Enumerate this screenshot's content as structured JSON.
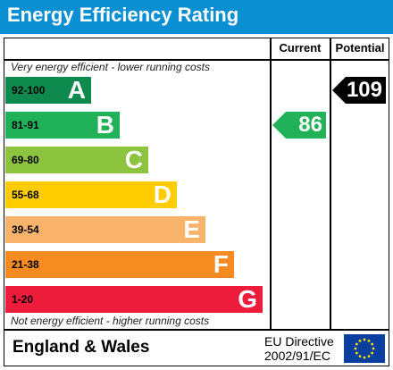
{
  "title": "Energy Efficiency Rating",
  "columns": {
    "current": "Current",
    "potential": "Potential"
  },
  "top_note": "Very energy efficient - lower running costs",
  "bottom_note": "Not energy efficient - higher running costs",
  "bands": [
    {
      "range": "92-100",
      "letter": "A",
      "color": "#0e8a4e",
      "range_color": "#000000"
    },
    {
      "range": "81-91",
      "letter": "B",
      "color": "#21b259",
      "range_color": "#000000"
    },
    {
      "range": "69-80",
      "letter": "C",
      "color": "#8dc43f",
      "range_color": "#000000"
    },
    {
      "range": "55-68",
      "letter": "D",
      "color": "#ffcc00",
      "range_color": "#000000"
    },
    {
      "range": "39-54",
      "letter": "E",
      "color": "#f9b36b",
      "range_color": "#000000"
    },
    {
      "range": "21-38",
      "letter": "F",
      "color": "#f58b21",
      "range_color": "#000000"
    },
    {
      "range": "1-20",
      "letter": "G",
      "color": "#ec1c3a",
      "range_color": "#000000"
    }
  ],
  "current": {
    "value": "86",
    "band": "B",
    "color": "#21b259",
    "text_color": "#ffffff"
  },
  "potential": {
    "value": "109",
    "band": "A",
    "color": "#000000",
    "text_color": "#ffffff"
  },
  "footer": {
    "region": "England & Wales",
    "directive_line1": "EU Directive",
    "directive_line2": "2002/91/EC"
  },
  "eu_flag_colors": {
    "background": "#0a3fa0",
    "stars": "#ffdd00"
  }
}
